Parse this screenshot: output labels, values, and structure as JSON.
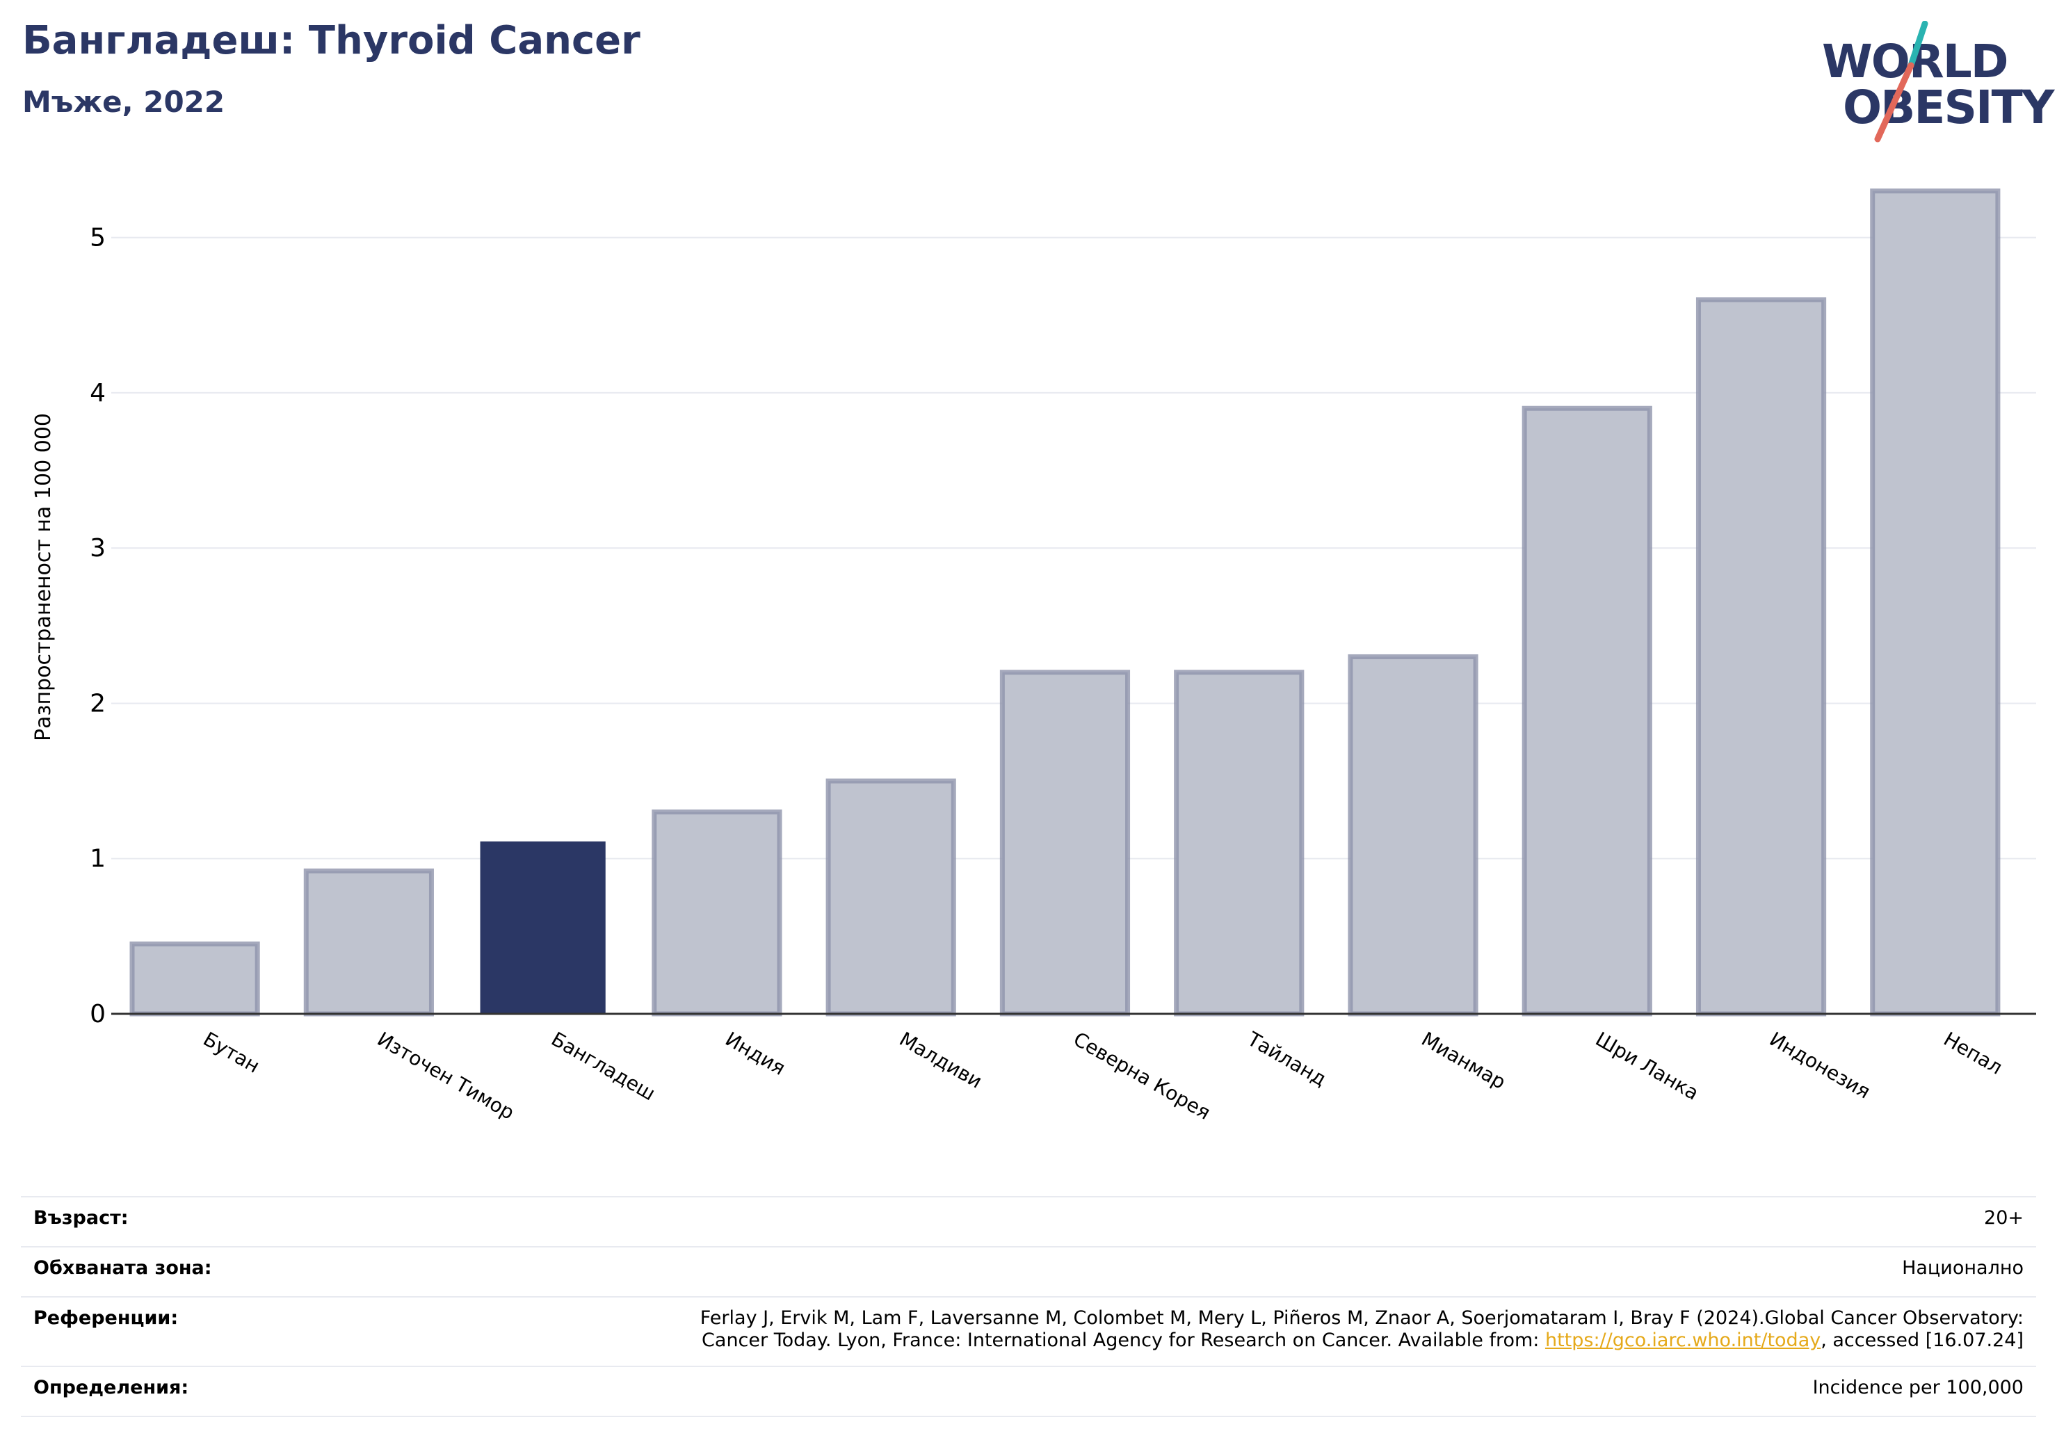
{
  "header": {
    "title": "Бангладеш: Thyroid Cancer",
    "subtitle": "Мъже, 2022"
  },
  "logo": {
    "line1": "WORLD",
    "line2": "OBESITY",
    "text_color": "#2b3765",
    "slash_colors": [
      "#2ab3b1",
      "#e2685a"
    ]
  },
  "colors": {
    "highlight_bar": "#2b3765",
    "other_bar_fill": "#bfc3cf",
    "other_bar_stroke": "#8e94ab",
    "grid": "#e8eaf0",
    "axis": "#333333"
  },
  "chart_data": {
    "type": "bar",
    "categories": [
      "Бутан",
      "Източен Тимор",
      "Бангладеш",
      "Индия",
      "Малдиви",
      "Северна Корея",
      "Тайланд",
      "Мианмар",
      "Шри Ланка",
      "Индонезия",
      "Непал"
    ],
    "values": [
      0.45,
      0.92,
      1.11,
      1.3,
      1.5,
      2.2,
      2.2,
      2.3,
      3.9,
      4.6,
      5.3
    ],
    "highlight": "Бангладеш",
    "ylabel": "Разпространеност  на 100 000",
    "xlabel": "",
    "ylim": [
      0,
      5.5
    ],
    "yticks": [
      0,
      1,
      2,
      3,
      4,
      5
    ],
    "grid": true
  },
  "info": {
    "age_label": "Възраст:",
    "age_value": "20+",
    "coverage_label": "Обхваната зона:",
    "coverage_value": "Национално",
    "refs_label": "Референции:",
    "refs_line1": "Ferlay J, Ervik M, Lam F, Laversanne M, Colombet M, Mery L, Piñeros M, Znaor A, Soerjomataram I, Bray F (2024).Global Cancer Observatory:",
    "refs_line2_pre": "Cancer Today. Lyon, France: International Agency for Research on Cancer. Available from: ",
    "refs_link": "https://gco.iarc.who.int/today",
    "refs_line2_post": ", accessed [16.07.24]",
    "defs_label": "Определения:",
    "defs_value": "Incidence per 100,000"
  }
}
